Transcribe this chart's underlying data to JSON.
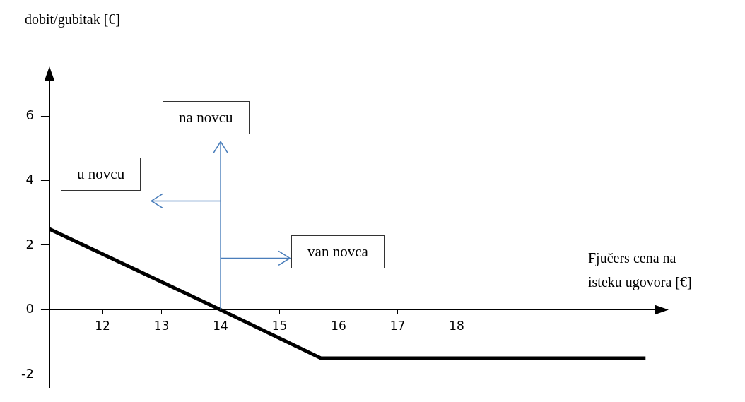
{
  "chart_data": {
    "type": "line",
    "xlabel": "Fjučers cena na isteku ugovora [€]",
    "ylabel": "dobit/gubitak [€]",
    "annotations": [
      {
        "text": "na novcu",
        "x": 14,
        "y": 0
      },
      "u novcu",
      "van novca"
    ],
    "x": [
      11.1,
      14,
      15.7,
      21.2
    ],
    "values": [
      2.5,
      0,
      -1.5,
      -1.5
    ],
    "color": "#000000",
    "xlim": [
      11.1,
      21.4
    ],
    "ylim": [
      -2.4,
      7.4
    ],
    "xticks": [
      12,
      13,
      14,
      15,
      16,
      17,
      18
    ],
    "yticks": [
      -2,
      0,
      2,
      4,
      6
    ]
  }
}
